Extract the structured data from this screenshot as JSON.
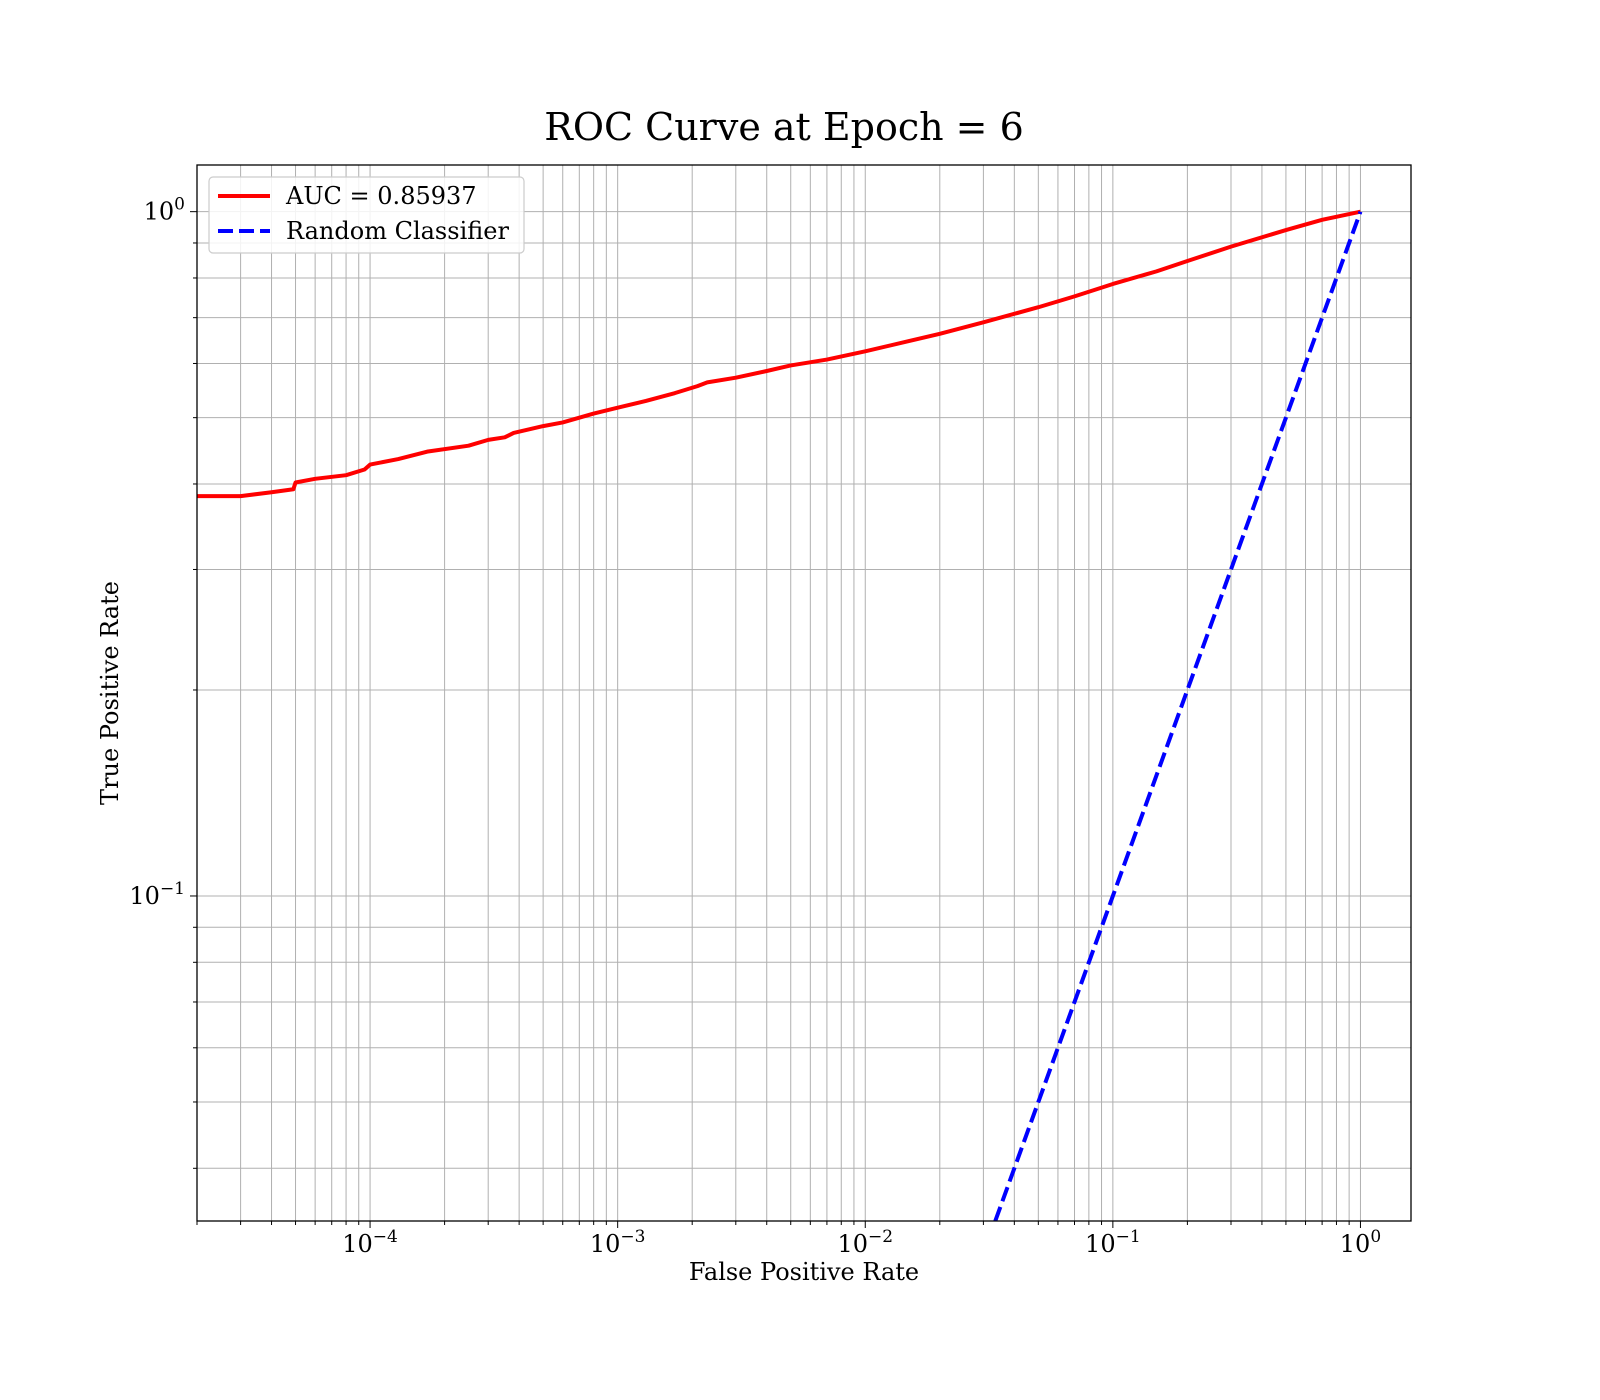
{
  "chart_data": {
    "type": "line",
    "title": "ROC Curve at Epoch = 6",
    "xlabel": "False Positive Rate",
    "ylabel": "True Positive Rate",
    "xscale": "log",
    "yscale": "log",
    "xlim": [
      2e-05,
      1.6
    ],
    "ylim": [
      0.0335,
      1.17
    ],
    "grid": true,
    "grid_minor": true,
    "legend_position": "upper-left",
    "x_ticks": [
      {
        "value": 0.0001,
        "base": "10",
        "exp": "−4"
      },
      {
        "value": 0.001,
        "base": "10",
        "exp": "−3"
      },
      {
        "value": 0.01,
        "base": "10",
        "exp": "−2"
      },
      {
        "value": 0.1,
        "base": "10",
        "exp": "−1"
      },
      {
        "value": 1,
        "base": "10",
        "exp": "0"
      }
    ],
    "y_ticks": [
      {
        "value": 0.1,
        "base": "10",
        "exp": "−1"
      },
      {
        "value": 1,
        "base": "10",
        "exp": "0"
      }
    ],
    "series": [
      {
        "name": "AUC = 0.85937",
        "color": "#ff0000",
        "style": "solid",
        "points": [
          [
            2e-05,
            0.384
          ],
          [
            3e-05,
            0.384
          ],
          [
            4e-05,
            0.389
          ],
          [
            4.9e-05,
            0.393
          ],
          [
            5e-05,
            0.402
          ],
          [
            6e-05,
            0.407
          ],
          [
            8e-05,
            0.412
          ],
          [
            9.5e-05,
            0.42
          ],
          [
            0.0001,
            0.427
          ],
          [
            0.00013,
            0.435
          ],
          [
            0.00017,
            0.446
          ],
          [
            0.00025,
            0.455
          ],
          [
            0.0003,
            0.464
          ],
          [
            0.00035,
            0.468
          ],
          [
            0.00038,
            0.475
          ],
          [
            0.0005,
            0.486
          ],
          [
            0.0006,
            0.492
          ],
          [
            0.0008,
            0.507
          ],
          [
            0.001,
            0.517
          ],
          [
            0.0013,
            0.529
          ],
          [
            0.0017,
            0.543
          ],
          [
            0.0021,
            0.556
          ],
          [
            0.0023,
            0.563
          ],
          [
            0.003,
            0.572
          ],
          [
            0.004,
            0.585
          ],
          [
            0.005,
            0.596
          ],
          [
            0.007,
            0.608
          ],
          [
            0.01,
            0.625
          ],
          [
            0.015,
            0.647
          ],
          [
            0.02,
            0.663
          ],
          [
            0.03,
            0.689
          ],
          [
            0.05,
            0.725
          ],
          [
            0.07,
            0.752
          ],
          [
            0.1,
            0.784
          ],
          [
            0.15,
            0.818
          ],
          [
            0.2,
            0.847
          ],
          [
            0.3,
            0.889
          ],
          [
            0.5,
            0.94
          ],
          [
            0.7,
            0.973
          ],
          [
            1.0,
            1.0
          ]
        ]
      },
      {
        "name": "Random Classifier",
        "color": "#0000ff",
        "style": "dashed",
        "points": [
          [
            0.0335,
            0.0335
          ],
          [
            1.0,
            1.0
          ]
        ]
      }
    ]
  }
}
